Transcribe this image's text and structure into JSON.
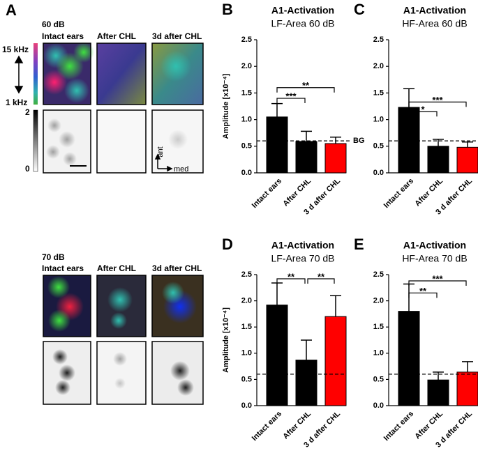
{
  "panel_a": {
    "label": "A",
    "rows": [
      {
        "level": "60 dB",
        "columns": [
          "Intact ears",
          "After CHL",
          "3d after CHL"
        ]
      },
      {
        "level": "70 dB",
        "columns": [
          "Intact ears",
          "After CHL",
          "3d after CHL"
        ]
      }
    ],
    "colorbar": {
      "top": "15 kHz",
      "bottom": "1 kHz"
    },
    "graybar": {
      "top": "2",
      "bottom": "0"
    },
    "orientation": {
      "up": "ant",
      "right": "med"
    }
  },
  "chart_data": [
    {
      "type": "bar",
      "panel": "B",
      "title": "A1-Activation",
      "subtitle": "LF-Area 60 dB",
      "ylabel": "Amplitude [x10⁻⁴]",
      "categories": [
        "Intact ears",
        "After CHL",
        "3 d after CHL"
      ],
      "values": [
        1.05,
        0.59,
        0.55
      ],
      "errors": [
        0.25,
        0.19,
        0.12
      ],
      "colors": [
        "#000000",
        "#000000",
        "#ff0000"
      ],
      "ylim": [
        0,
        2.5
      ],
      "yticks": [
        {
          "value": 0,
          "label": "0.0"
        },
        0.5,
        {
          "value": 1,
          "label": "1.0"
        },
        1.5,
        {
          "value": 2,
          "label": "2.0"
        },
        2.5
      ],
      "baseline": 0.6,
      "baseline_label": "BG",
      "significance": [
        {
          "from": 0,
          "to": 1,
          "y": 1.4,
          "label": "***"
        },
        {
          "from": 0,
          "to": 2,
          "y": 1.6,
          "label": "**"
        }
      ]
    },
    {
      "type": "bar",
      "panel": "C",
      "title": "A1-Activation",
      "subtitle": "HF-Area 60 dB",
      "categories": [
        "Intact ears",
        "After CHL",
        "3 d after CHL"
      ],
      "values": [
        1.23,
        0.5,
        0.48
      ],
      "errors": [
        0.35,
        0.13,
        0.1
      ],
      "colors": [
        "#000000",
        "#000000",
        "#ff0000"
      ],
      "ylim": [
        0,
        2.5
      ],
      "yticks": [
        {
          "value": 0,
          "label": "0.0"
        },
        0.5,
        {
          "value": 1,
          "label": "1.0"
        },
        1.5,
        {
          "value": 2,
          "label": "2.0"
        },
        2.5
      ],
      "baseline": 0.6,
      "significance": [
        {
          "from": 0,
          "to": 1,
          "y": 1.15,
          "label": "*"
        },
        {
          "from": 0,
          "to": 2,
          "y": 1.33,
          "label": "***"
        }
      ]
    },
    {
      "type": "bar",
      "panel": "D",
      "title": "A1-Activation",
      "subtitle": "LF-Area 70 dB",
      "ylabel": "Amplitude [x10⁻⁴]",
      "categories": [
        "Intact ears",
        "After CHL",
        "3 d after CHL"
      ],
      "values": [
        1.92,
        0.87,
        1.7
      ],
      "errors": [
        0.42,
        0.38,
        0.4
      ],
      "colors": [
        "#000000",
        "#000000",
        "#ff0000"
      ],
      "ylim": [
        0,
        2.5
      ],
      "yticks": [
        {
          "value": 0,
          "label": "0.0"
        },
        0.5,
        {
          "value": 1,
          "label": "1.0"
        },
        1.5,
        {
          "value": 2,
          "label": "2.0"
        },
        2.5
      ],
      "baseline": 0.6,
      "significance": [
        {
          "from": 0,
          "to": 1,
          "y": 2.42,
          "label": "**"
        },
        {
          "from": 1,
          "to": 2,
          "y": 2.42,
          "label": "**"
        }
      ]
    },
    {
      "type": "bar",
      "panel": "E",
      "title": "A1-Activation",
      "subtitle": "HF-Area 70 dB",
      "categories": [
        "Intact ears",
        "After CHL",
        "3 d after CHL"
      ],
      "values": [
        1.8,
        0.49,
        0.64
      ],
      "errors": [
        0.52,
        0.15,
        0.2
      ],
      "colors": [
        "#000000",
        "#000000",
        "#ff0000"
      ],
      "ylim": [
        0,
        2.5
      ],
      "yticks": [
        {
          "value": 0,
          "label": "0.0"
        },
        0.5,
        {
          "value": 1,
          "label": "1.0"
        },
        1.5,
        {
          "value": 2,
          "label": "2.0"
        },
        2.5
      ],
      "baseline": 0.6,
      "significance": [
        {
          "from": 0,
          "to": 1,
          "y": 2.15,
          "label": "**"
        },
        {
          "from": 0,
          "to": 2,
          "y": 2.38,
          "label": "***"
        }
      ]
    }
  ]
}
